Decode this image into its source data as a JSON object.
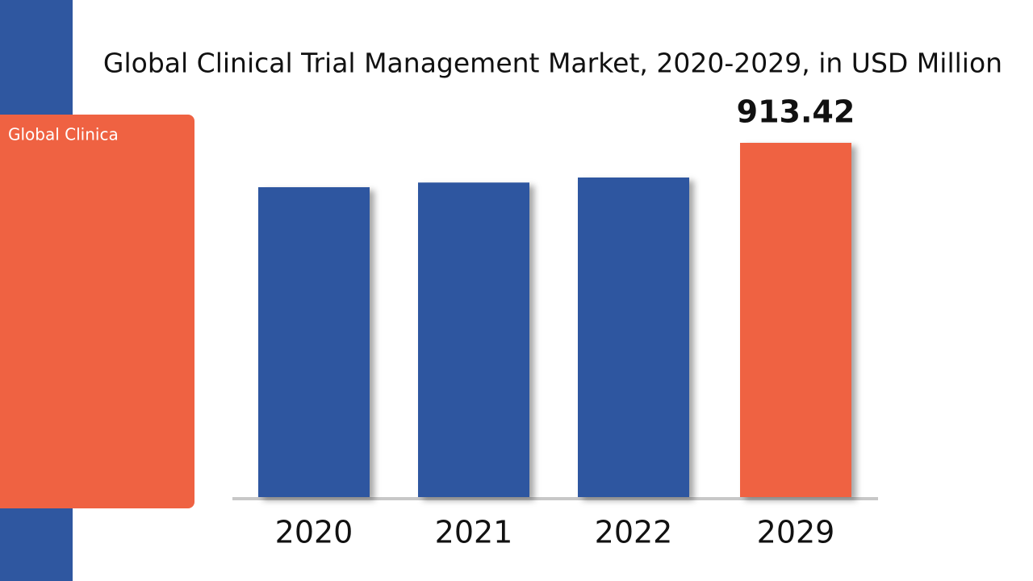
{
  "chart_data": {
    "type": "bar",
    "title": "Global Clinical Trial Management Market, 2020-2029, in USD Million",
    "sidebar_text": "Global Clinica",
    "categories": [
      "2020",
      "2021",
      "2022",
      "2029"
    ],
    "values": [
      799,
      811,
      824,
      913.42
    ],
    "value_labels": [
      null,
      null,
      null,
      "913.42"
    ],
    "colors": [
      "#2f57a0",
      "#2f57a0",
      "#2f57a0",
      "#ef6242"
    ],
    "grid": false
  }
}
